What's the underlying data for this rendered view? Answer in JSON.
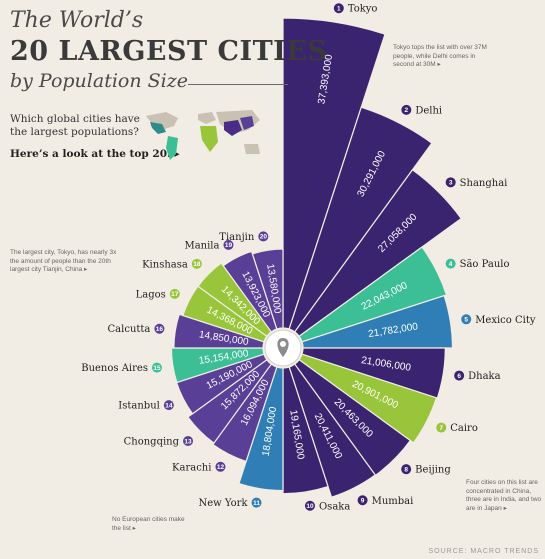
{
  "header": {
    "title_line1": "The World’s",
    "title_line2": "20 LARGEST CITIES",
    "title_line3": "by Population Size",
    "question": "Which global cities have the largest populations?",
    "lead": "Here’s a look at the top 20. ▸"
  },
  "notes": {
    "tokyo": "Tokyo tops the list with over 37M people, while Delhi comes in second at 30M ▸",
    "ratio": "The largest city, Tokyo, has nearly 3x the amount of people than the 20th largest city Tianjin, China ▸",
    "europe": "No European cities make the list ▸",
    "asia": "Four cities on this list are concentrated in China, three are in India, and two are in Japan ▸"
  },
  "source": "SOURCE: MACRO TRENDS",
  "colors": {
    "background": "#f1ede4",
    "purple_dark": "#3a2470",
    "purple_mid": "#5a3f97",
    "purple_light": "#6e55ab",
    "green": "#98c53a",
    "teal": "#3dbf96",
    "blue": "#2f7fb6",
    "marker_grey": "#8b8b8b"
  },
  "chart_data": {
    "type": "radial-bar",
    "title": "20 LARGEST CITIES by Population Size",
    "unit": "people",
    "series": [
      {
        "values": [
          {
            "rank": 1,
            "city": "Tokyo",
            "population": 37393000,
            "label": "37,393,000",
            "color": "purple_dark"
          },
          {
            "rank": 2,
            "city": "Delhi",
            "population": 30291000,
            "label": "30,291,000",
            "color": "purple_dark"
          },
          {
            "rank": 3,
            "city": "Shanghai",
            "population": 27058000,
            "label": "27,058,000",
            "color": "purple_dark"
          },
          {
            "rank": 4,
            "city": "São Paulo",
            "population": 22043000,
            "label": "22,043,000",
            "color": "teal"
          },
          {
            "rank": 5,
            "city": "Mexico City",
            "population": 21782000,
            "label": "21,782,000",
            "color": "blue"
          },
          {
            "rank": 6,
            "city": "Dhaka",
            "population": 21006000,
            "label": "21,006,000",
            "color": "purple_dark"
          },
          {
            "rank": 7,
            "city": "Cairo",
            "population": 20901000,
            "label": "20,901,000",
            "color": "green"
          },
          {
            "rank": 8,
            "city": "Beijing",
            "population": 20463000,
            "label": "20,463,000",
            "color": "purple_dark"
          },
          {
            "rank": 9,
            "city": "Mumbai",
            "population": 20411000,
            "label": "20,411,000",
            "color": "purple_dark"
          },
          {
            "rank": 10,
            "city": "Osaka",
            "population": 19165000,
            "label": "19,165,000",
            "color": "purple_dark"
          },
          {
            "rank": 11,
            "city": "New York",
            "population": 18804000,
            "label": "18,804,000",
            "color": "blue"
          },
          {
            "rank": 12,
            "city": "Karachi",
            "population": 16094000,
            "label": "16,094,000",
            "color": "purple_mid"
          },
          {
            "rank": 13,
            "city": "Chongqing",
            "population": 15872000,
            "label": "15,872,000",
            "color": "purple_mid"
          },
          {
            "rank": 14,
            "city": "Istanbul",
            "population": 15190000,
            "label": "15,190,000",
            "color": "purple_mid"
          },
          {
            "rank": 15,
            "city": "Buenos Aires",
            "population": 15154000,
            "label": "15,154,000",
            "color": "teal"
          },
          {
            "rank": 16,
            "city": "Calcutta",
            "population": 14850000,
            "label": "14,850,000",
            "color": "purple_mid"
          },
          {
            "rank": 17,
            "city": "Lagos",
            "population": 14368000,
            "label": "14,368,000",
            "color": "green"
          },
          {
            "rank": 18,
            "city": "Kinshasa",
            "population": 14342000,
            "label": "14,342,000",
            "color": "green"
          },
          {
            "rank": 19,
            "city": "Manila",
            "population": 13923000,
            "label": "13,923,000",
            "color": "purple_mid"
          },
          {
            "rank": 20,
            "city": "Tianjin",
            "population": 13580000,
            "label": "13,580,000",
            "color": "purple_mid"
          }
        ]
      }
    ]
  }
}
